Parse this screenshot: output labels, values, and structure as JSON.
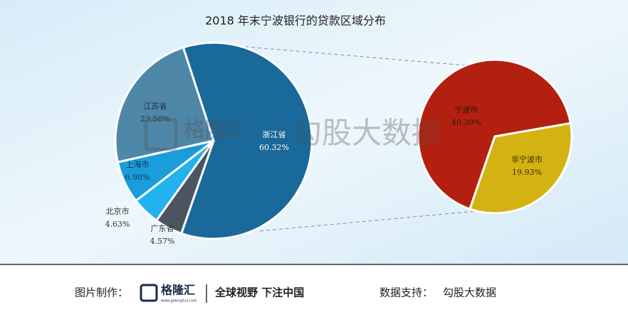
{
  "chart_data": [
    {
      "type": "pie",
      "title": "2018 年末宁波银行的贷款区域分布",
      "categories": [
        "浙江省",
        "广东省",
        "北京市",
        "上海市",
        "江苏省"
      ],
      "values": [
        60.32,
        4.57,
        4.63,
        6.98,
        23.5
      ],
      "value_labels": [
        "60.32%",
        "4.57%",
        "4.63%",
        "6.98%",
        "23.50%"
      ],
      "colors": [
        "#19699a",
        "#4b5561",
        "#22b2ee",
        "#1a9ddb",
        "#4f87a8"
      ]
    },
    {
      "type": "pie",
      "categories": [
        "宁波市",
        "非宁波市"
      ],
      "values": [
        40.39,
        19.93
      ],
      "value_labels": [
        "40.39%",
        "19.93%"
      ],
      "colors": [
        "#b3200f",
        "#d4b212"
      ]
    }
  ],
  "watermark": {
    "brand": "格隆汇",
    "site": "www.gelonghui.com",
    "partner": "勾股大数据"
  },
  "footer": {
    "made_by": "图片制作：",
    "brand": "格隆汇",
    "site": "www.gelonghui.com",
    "slogan": "全球视野 下注中国",
    "data_label": "数据支持：",
    "data_source": "勾股大数据"
  }
}
